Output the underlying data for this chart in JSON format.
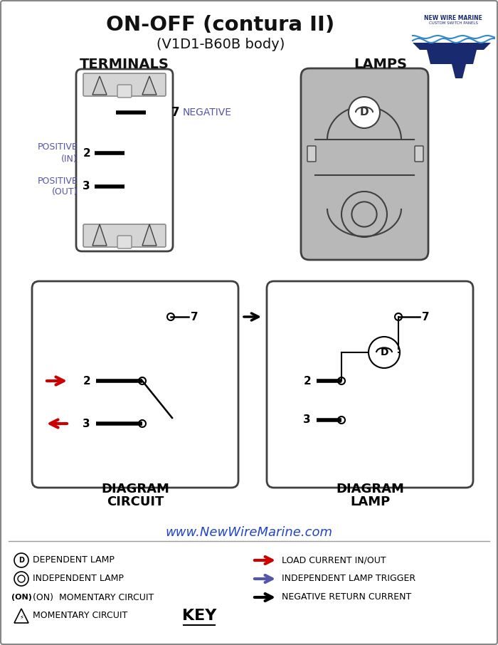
{
  "title_line1": "ON-OFF (contura II)",
  "title_line2": "(V1D1-B60B body)",
  "bg_color": "#ffffff",
  "text_color": "#000000",
  "purple_color": "#5555aa",
  "red_color": "#cc0000",
  "gray_color": "#b8b8b8",
  "border_color": "#404040",
  "website": "www.NewWireMarine.com",
  "terminals_label": "TERMINALS",
  "lamps_label": "LAMPS",
  "circuit_label1": "CIRCUIT",
  "circuit_label2": "DIAGRAM",
  "lamp_diag_label1": "LAMP",
  "lamp_diag_label2": "DIAGRAM",
  "key_left": [
    "DEPENDENT LAMP",
    "INDEPENDENT LAMP",
    "(ON)  MOMENTARY CIRCUIT",
    "MOMENTARY CIRCUIT"
  ],
  "key_right": [
    "LOAD CURRENT IN/OUT",
    "INDEPENDENT LAMP TRIGGER",
    "NEGATIVE RETURN CURRENT"
  ],
  "key_right_colors": [
    "#cc0000",
    "#5555aa",
    "#000000"
  ]
}
